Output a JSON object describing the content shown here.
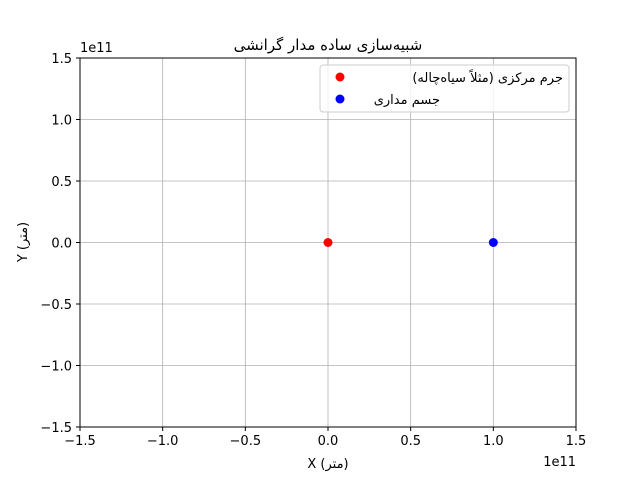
{
  "chart_data": {
    "type": "scatter",
    "title": "شبیه‌سازی ساده مدار گرانشی",
    "xlabel": "X (متر)",
    "ylabel": "Y (متر)",
    "x_offset_text": "1e11",
    "y_offset_text": "1e11",
    "xlim": [
      -150000000000,
      150000000000
    ],
    "ylim": [
      -150000000000,
      150000000000
    ],
    "x_ticks": [
      -150000000000,
      -100000000000,
      -50000000000,
      0,
      50000000000,
      100000000000,
      150000000000
    ],
    "y_ticks": [
      -150000000000,
      -100000000000,
      -50000000000,
      0,
      50000000000,
      100000000000,
      150000000000
    ],
    "x_tick_labels": [
      "−1.5",
      "−1.0",
      "−0.5",
      "0.0",
      "0.5",
      "1.0",
      "1.5"
    ],
    "y_tick_labels": [
      "−1.5",
      "−1.0",
      "−0.5",
      "0.0",
      "0.5",
      "1.0",
      "1.5"
    ],
    "grid": true,
    "legend_position": "top-right",
    "series": [
      {
        "name": "جرم مرکزی (مثلاً سیاه‌چاله)",
        "color": "#ff0000",
        "points": [
          {
            "x": 0,
            "y": 0
          }
        ]
      },
      {
        "name": "جسم مداری",
        "color": "#0000ff",
        "points": [
          {
            "x": 100000000000,
            "y": 0
          }
        ]
      }
    ]
  }
}
